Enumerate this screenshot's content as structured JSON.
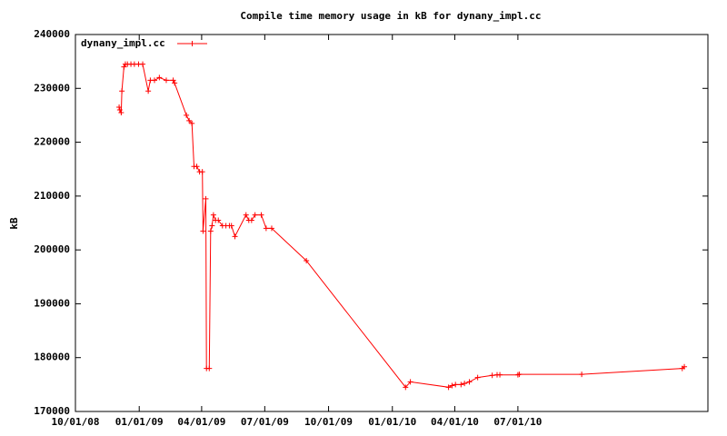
{
  "chart_data": {
    "type": "line",
    "title": "Compile time memory usage in kB for dynany_impl.cc",
    "y_label": "kB",
    "legend": "top-left",
    "x": [
      "2008-12-03",
      "2008-12-04",
      "2008-12-06",
      "2008-12-07",
      "2008-12-10",
      "2008-12-12",
      "2008-12-15",
      "2008-12-20",
      "2008-12-25",
      "2008-12-31",
      "2009-01-06",
      "2009-01-14",
      "2009-01-17",
      "2009-01-23",
      "2009-01-30",
      "2009-02-09",
      "2009-02-19",
      "2009-02-21",
      "2009-03-10",
      "2009-03-14",
      "2009-03-18",
      "2009-03-21",
      "2009-03-25",
      "2009-03-29",
      "2009-04-02",
      "2009-04-03",
      "2009-04-07",
      "2009-04-08",
      "2009-04-12",
      "2009-04-14",
      "2009-04-16",
      "2009-04-18",
      "2009-04-21",
      "2009-04-25",
      "2009-05-01",
      "2009-05-06",
      "2009-05-11",
      "2009-05-14",
      "2009-05-19",
      "2009-06-04",
      "2009-06-08",
      "2009-06-12",
      "2009-06-17",
      "2009-06-26",
      "2009-07-03",
      "2009-07-11",
      "2009-08-30",
      "2010-01-20",
      "2010-01-27",
      "2010-03-23",
      "2010-03-28",
      "2010-04-02",
      "2010-04-10",
      "2010-04-15",
      "2010-04-22",
      "2010-05-04",
      "2010-05-25",
      "2010-06-01",
      "2010-06-05",
      "2010-07-01",
      "2010-07-03",
      "2010-10-01",
      "2011-02-23",
      "2011-02-26"
    ],
    "series": [
      {
        "name": "dynany_impl.cc",
        "color": "#ff0000",
        "values": [
          226500,
          226000,
          225500,
          229500,
          234000,
          234500,
          234500,
          234500,
          234500,
          234500,
          234500,
          229500,
          231500,
          231500,
          232000,
          231500,
          231500,
          231000,
          225000,
          224000,
          223500,
          215500,
          215500,
          214500,
          214500,
          203500,
          209500,
          178000,
          178000,
          203500,
          204500,
          206500,
          205500,
          205500,
          204500,
          204500,
          204500,
          204500,
          202500,
          206500,
          205500,
          205500,
          206500,
          206500,
          204000,
          204000,
          198000,
          174500,
          175500,
          174500,
          174800,
          175000,
          175000,
          175200,
          175500,
          176300,
          176700,
          176800,
          176800,
          176800,
          176900,
          176900,
          178000,
          178300
        ]
      }
    ],
    "xlim": [
      "2008-10-01",
      "2011-04-01"
    ],
    "xticks": [
      {
        "value": "2008-10-01",
        "label": "10/01/08"
      },
      {
        "value": "2009-01-01",
        "label": "01/01/09"
      },
      {
        "value": "2009-04-01",
        "label": "04/01/09"
      },
      {
        "value": "2009-07-01",
        "label": "07/01/09"
      },
      {
        "value": "2009-10-01",
        "label": "10/01/09"
      },
      {
        "value": "2010-01-01",
        "label": "01/01/10"
      },
      {
        "value": "2010-04-01",
        "label": "04/01/10"
      },
      {
        "value": "2010-07-01",
        "label": "07/01/10"
      }
    ],
    "ylim": [
      170000,
      240000
    ],
    "yticks": [
      170000,
      180000,
      190000,
      200000,
      210000,
      220000,
      230000,
      240000
    ]
  }
}
